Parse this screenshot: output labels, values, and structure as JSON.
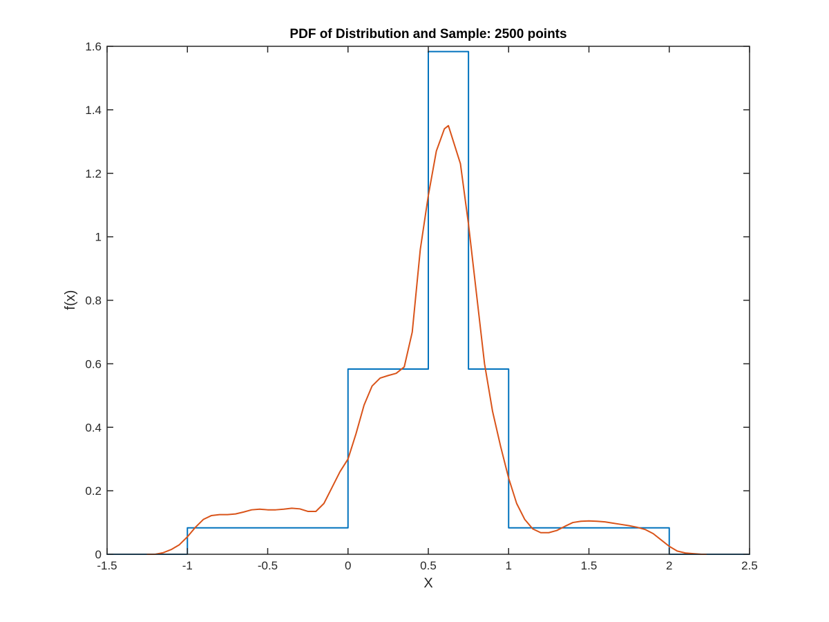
{
  "chart_data": {
    "type": "line",
    "title": "PDF of Distribution and Sample: 2500 points",
    "xlabel": "X",
    "ylabel": "f(x)",
    "xlim": [
      -1.5,
      2.5
    ],
    "ylim": [
      0,
      1.6
    ],
    "grid": false,
    "box": true,
    "xticks": [
      -1.5,
      -1,
      -0.5,
      0,
      0.5,
      1,
      1.5,
      2,
      2.5
    ],
    "yticks": [
      0,
      0.2,
      0.4,
      0.6,
      0.8,
      1,
      1.2,
      1.4,
      1.6
    ],
    "xtick_labels": [
      "-1.5",
      "-1",
      "-0.5",
      "0",
      "0.5",
      "1",
      "1.5",
      "2",
      "2.5"
    ],
    "ytick_labels": [
      "0",
      "0.2",
      "0.4",
      "0.6",
      "0.8",
      "1",
      "1.2",
      "1.4",
      "1.6"
    ],
    "series": [
      {
        "color": "#0072BD",
        "x": [
          -1.5,
          -1.0,
          -1.0,
          0.0,
          0.0,
          0.5,
          0.5,
          0.75,
          0.75,
          1.0,
          1.0,
          2.0,
          2.0,
          2.5
        ],
        "y": [
          0,
          0,
          0.0833,
          0.0833,
          0.5833,
          0.5833,
          1.5833,
          1.5833,
          0.5833,
          0.5833,
          0.0833,
          0.0833,
          0,
          0
        ]
      },
      {
        "color": "#D95319",
        "x": [
          -1.25,
          -1.2,
          -1.15,
          -1.1,
          -1.05,
          -1.0,
          -0.95,
          -0.9,
          -0.85,
          -0.8,
          -0.75,
          -0.7,
          -0.65,
          -0.6,
          -0.55,
          -0.5,
          -0.45,
          -0.4,
          -0.35,
          -0.3,
          -0.25,
          -0.2,
          -0.15,
          -0.1,
          -0.05,
          0.0,
          0.05,
          0.1,
          0.15,
          0.2,
          0.25,
          0.3,
          0.35,
          0.4,
          0.45,
          0.5,
          0.55,
          0.6,
          0.625,
          0.65,
          0.7,
          0.75,
          0.8,
          0.85,
          0.9,
          0.95,
          1.0,
          1.05,
          1.1,
          1.15,
          1.2,
          1.25,
          1.3,
          1.35,
          1.4,
          1.45,
          1.5,
          1.55,
          1.6,
          1.65,
          1.7,
          1.75,
          1.8,
          1.85,
          1.9,
          1.95,
          2.0,
          2.05,
          2.1,
          2.15,
          2.2,
          2.23
        ],
        "y": [
          0.0,
          0.0,
          0.005,
          0.015,
          0.03,
          0.055,
          0.085,
          0.11,
          0.122,
          0.125,
          0.125,
          0.127,
          0.133,
          0.14,
          0.142,
          0.14,
          0.14,
          0.142,
          0.145,
          0.143,
          0.135,
          0.135,
          0.16,
          0.21,
          0.26,
          0.3,
          0.38,
          0.47,
          0.53,
          0.555,
          0.563,
          0.57,
          0.59,
          0.7,
          0.96,
          1.13,
          1.27,
          1.34,
          1.35,
          1.31,
          1.23,
          1.04,
          0.82,
          0.6,
          0.45,
          0.34,
          0.24,
          0.16,
          0.11,
          0.08,
          0.068,
          0.068,
          0.075,
          0.088,
          0.1,
          0.104,
          0.105,
          0.104,
          0.102,
          0.098,
          0.094,
          0.09,
          0.085,
          0.078,
          0.065,
          0.045,
          0.025,
          0.01,
          0.004,
          0.002,
          0.0,
          0.0
        ]
      }
    ]
  }
}
